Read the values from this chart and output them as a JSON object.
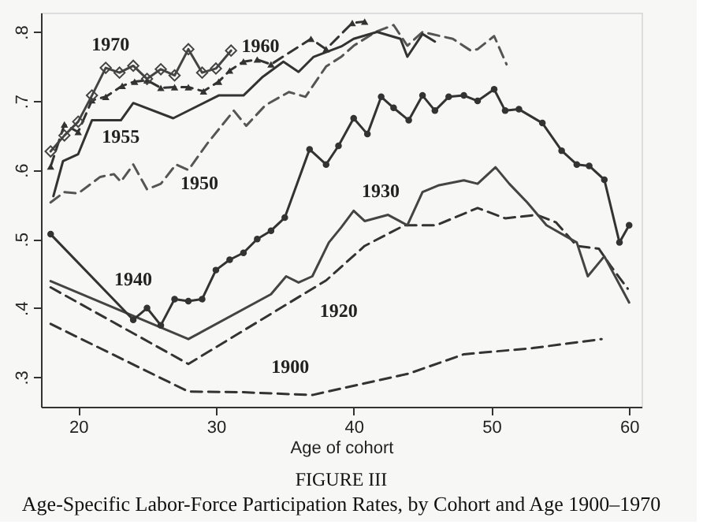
{
  "chart_data": {
    "type": "line",
    "title": "FIGURE III",
    "subtitle": "Age-Specific Labor-Force Participation Rates, by Cohort and Age 1900–1970",
    "xlabel": "Age of cohort",
    "xlim": [
      17.3,
      60.9
    ],
    "xticks": [
      20,
      30,
      40,
      50,
      60
    ],
    "ylim": [
      0.257,
      0.828
    ],
    "yticks": [
      {
        "value": 0.3,
        "label": ".3"
      },
      {
        "value": 0.4,
        "label": ".4"
      },
      {
        "value": 0.5,
        "label": ".5"
      },
      {
        "value": 0.6,
        "label": ".6"
      },
      {
        "value": 0.7,
        "label": ".7"
      },
      {
        "value": 0.8,
        "label": ".8"
      }
    ],
    "grid": false,
    "series": [
      {
        "name": "1900",
        "color": "#333333",
        "line_style": "dashed",
        "marker": "none",
        "x": [
          18,
          28,
          32,
          37,
          39,
          44,
          48,
          53,
          58
        ],
        "values": [
          0.377,
          0.279,
          0.278,
          0.274,
          0.283,
          0.305,
          0.333,
          0.342,
          0.355
        ]
      },
      {
        "name": "1920",
        "color": "#333333",
        "line_style": "dashed",
        "marker": "none",
        "x": [
          18,
          28,
          38,
          40.8,
          43.7,
          46,
          49,
          51,
          53.3,
          54.7,
          56.2,
          57.8,
          58.7,
          59.9
        ],
        "values": [
          0.43,
          0.319,
          0.44,
          0.49,
          0.52,
          0.52,
          0.545,
          0.53,
          0.535,
          0.524,
          0.49,
          0.486,
          0.46,
          0.428
        ]
      },
      {
        "name": "1930",
        "color": "#444444",
        "line_style": "solid",
        "marker": "none",
        "x": [
          18,
          28,
          34,
          35.1,
          36,
          37,
          38.2,
          39.1,
          40,
          40.8,
          42.5,
          43.9,
          45,
          46.2,
          48,
          49,
          50.3,
          51.3,
          52.6,
          54,
          56.2,
          57,
          58.2,
          60
        ],
        "values": [
          0.439,
          0.355,
          0.42,
          0.446,
          0.437,
          0.446,
          0.495,
          0.517,
          0.541,
          0.526,
          0.535,
          0.52,
          0.568,
          0.578,
          0.585,
          0.58,
          0.604,
          0.58,
          0.553,
          0.52,
          0.495,
          0.446,
          0.475,
          0.408
        ]
      },
      {
        "name": "1940",
        "color": "#333333",
        "line_style": "solid",
        "marker": "circle",
        "x": [
          18,
          24,
          25,
          26,
          27,
          28,
          29,
          30,
          31,
          32,
          33,
          34,
          35,
          36.8,
          38,
          38.9,
          40,
          41,
          42,
          42.9,
          44,
          45,
          45.9,
          46.9,
          48,
          49,
          50.2,
          51,
          52,
          53.7,
          55.1,
          56.2,
          57.1,
          58.2,
          59.3,
          60
        ],
        "values": [
          0.507,
          0.383,
          0.4,
          0.375,
          0.413,
          0.41,
          0.413,
          0.455,
          0.47,
          0.48,
          0.5,
          0.512,
          0.531,
          0.63,
          0.608,
          0.635,
          0.675,
          0.652,
          0.706,
          0.69,
          0.672,
          0.708,
          0.686,
          0.706,
          0.708,
          0.7,
          0.717,
          0.686,
          0.688,
          0.668,
          0.628,
          0.608,
          0.606,
          0.586,
          0.495,
          0.52
        ]
      },
      {
        "name": "1950",
        "color": "#555555",
        "line_style": "dashed",
        "marker": "none",
        "x": [
          18,
          19,
          20,
          21.6,
          22.6,
          23.1,
          24,
          25,
          26,
          27.1,
          28,
          29.4,
          31.3,
          32.2,
          33.6,
          35.3,
          36.5,
          38,
          39.1,
          40,
          41.6,
          42.9,
          43.9,
          45,
          46.3,
          47.2,
          48.5,
          49,
          50.2,
          51.1
        ],
        "values": [
          0.553,
          0.568,
          0.566,
          0.59,
          0.594,
          0.583,
          0.608,
          0.572,
          0.58,
          0.608,
          0.6,
          0.639,
          0.686,
          0.664,
          0.694,
          0.713,
          0.706,
          0.75,
          0.764,
          0.78,
          0.8,
          0.81,
          0.78,
          0.8,
          0.794,
          0.79,
          0.773,
          0.775,
          0.794,
          0.753
        ]
      },
      {
        "name": "1955",
        "color": "#333333",
        "line_style": "solid",
        "marker": "none",
        "x": [
          18.2,
          18.9,
          20,
          21,
          23.1,
          24,
          26.9,
          30.2,
          32,
          33.4,
          34.9,
          36,
          37.1,
          39.1,
          40,
          41.7,
          43.4,
          43.9,
          45,
          45.9
        ],
        "values": [
          0.562,
          0.613,
          0.623,
          0.672,
          0.672,
          0.697,
          0.675,
          0.708,
          0.708,
          0.735,
          0.757,
          0.742,
          0.764,
          0.779,
          0.79,
          0.8,
          0.79,
          0.764,
          0.797,
          0.786
        ]
      },
      {
        "name": "1960",
        "color": "#333333",
        "line_style": "dashed",
        "marker": "triangle",
        "x": [
          18,
          19,
          20,
          21,
          22,
          23.2,
          24.1,
          25,
          26,
          27,
          28,
          29.1,
          30.2,
          31,
          32,
          33,
          34,
          36.9,
          38,
          39.9,
          40.8
        ],
        "values": [
          0.605,
          0.666,
          0.655,
          0.701,
          0.706,
          0.722,
          0.728,
          0.73,
          0.719,
          0.72,
          0.72,
          0.714,
          0.728,
          0.744,
          0.757,
          0.76,
          0.753,
          0.79,
          0.775,
          0.813,
          0.815
        ]
      },
      {
        "name": "1970",
        "color": "#444444",
        "line_style": "solid",
        "marker": "diamond",
        "x": [
          18,
          19,
          20,
          21,
          22,
          23,
          24,
          25,
          26,
          27,
          28,
          29,
          30,
          31.1
        ],
        "values": [
          0.627,
          0.65,
          0.67,
          0.708,
          0.748,
          0.741,
          0.751,
          0.732,
          0.746,
          0.737,
          0.775,
          0.741,
          0.747,
          0.773
        ]
      }
    ]
  }
}
